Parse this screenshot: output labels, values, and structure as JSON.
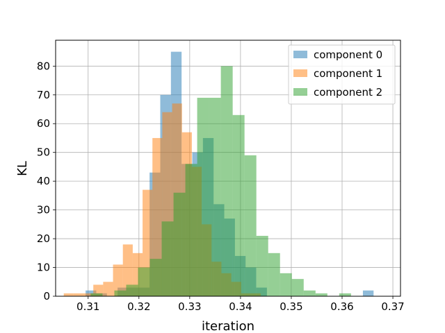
{
  "chart_data": {
    "type": "histogram",
    "xlabel": "iteration",
    "ylabel": "KL",
    "xlim": [
      0.3036,
      0.3715
    ],
    "ylim": [
      0,
      89
    ],
    "xticks": [
      0.31,
      0.32,
      0.33,
      0.34,
      0.35,
      0.36,
      0.37
    ],
    "yticks": [
      0,
      10,
      20,
      30,
      40,
      50,
      60,
      70,
      80
    ],
    "grid": true,
    "legend_position": "top-right",
    "series": [
      {
        "name": "component 0",
        "color": "#1f77b4",
        "bin_start": 0.3095,
        "bin_width": 0.0021,
        "counts": [
          2,
          1,
          0,
          3,
          3,
          3,
          43,
          70,
          85,
          46,
          50,
          55,
          32,
          27,
          14,
          10,
          3,
          0,
          0,
          0,
          0,
          0,
          0,
          0,
          0,
          0,
          2
        ]
      },
      {
        "name": "component 1",
        "color": "#ff7f0e",
        "bin_start": 0.3052,
        "bin_width": 0.00194,
        "counts": [
          1,
          1,
          1,
          4,
          5,
          11,
          18,
          15,
          37,
          55,
          64,
          67,
          57,
          45,
          25,
          12,
          8,
          5,
          1,
          1
        ]
      },
      {
        "name": "component 2",
        "color": "#2ca02c",
        "bin_start": 0.3105,
        "bin_width": 0.00233,
        "counts": [
          1,
          0,
          2,
          4,
          10,
          13,
          26,
          36,
          46,
          69,
          69,
          80,
          63,
          49,
          21,
          15,
          8,
          6,
          2,
          1,
          0,
          1
        ]
      }
    ]
  }
}
